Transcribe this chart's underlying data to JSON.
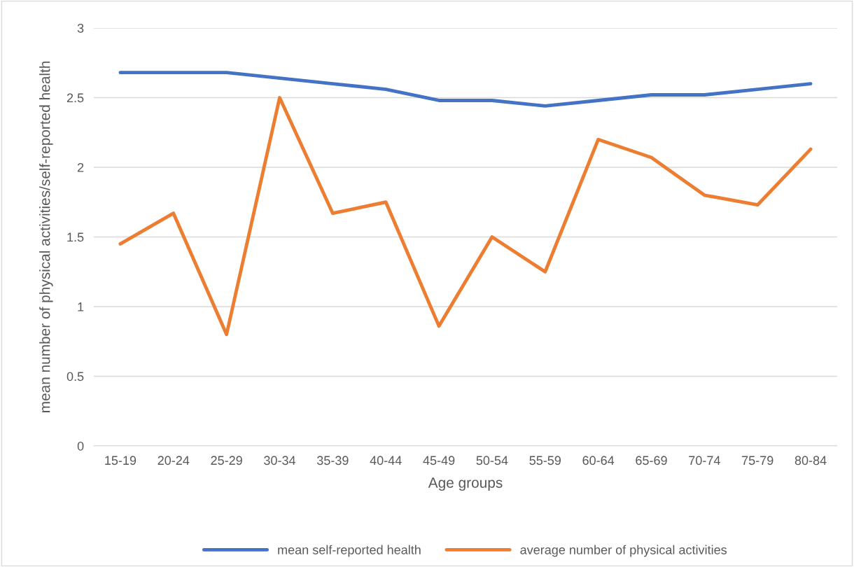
{
  "chart_data": {
    "type": "line",
    "xlabel": "Age groups",
    "ylabel": "mean number of physical activities/self-reported health",
    "categories": [
      "15-19",
      "20-24",
      "25-29",
      "30-34",
      "35-39",
      "40-44",
      "45-49",
      "50-54",
      "55-59",
      "60-64",
      "65-69",
      "70-74",
      "75-79",
      "80-84"
    ],
    "series": [
      {
        "name": "mean self-reported health",
        "color": "#4472c4",
        "values": [
          2.68,
          2.68,
          2.68,
          2.64,
          2.6,
          2.56,
          2.48,
          2.48,
          2.44,
          2.48,
          2.52,
          2.52,
          2.56,
          2.6
        ]
      },
      {
        "name": "average number of physical activities",
        "color": "#ed7d31",
        "values": [
          1.45,
          1.67,
          0.8,
          2.5,
          1.67,
          1.75,
          0.86,
          1.5,
          1.25,
          2.2,
          2.07,
          1.8,
          1.73,
          2.13
        ]
      }
    ],
    "ylim": [
      0,
      3
    ],
    "yticks": [
      0,
      0.5,
      1,
      1.5,
      2,
      2.5,
      3
    ],
    "grid": "y",
    "legend": "bottom",
    "marker": "none",
    "line_style": "solid"
  }
}
